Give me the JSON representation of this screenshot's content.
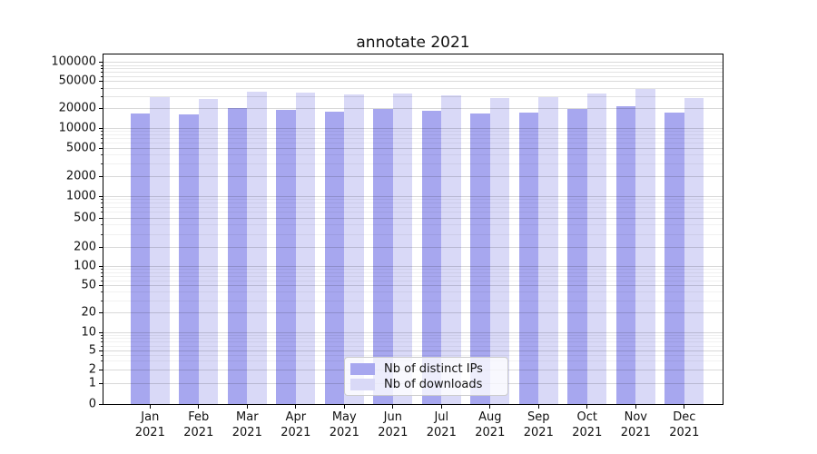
{
  "chart_data": {
    "type": "bar",
    "title": "annotate 2021",
    "categories": [
      "Jan",
      "Feb",
      "Mar",
      "Apr",
      "May",
      "Jun",
      "Jul",
      "Aug",
      "Sep",
      "Oct",
      "Nov",
      "Dec"
    ],
    "category_year": "2021",
    "series": [
      {
        "name": "Nb of distinct IPs",
        "color": "#a7a7ef",
        "values": [
          16500,
          16000,
          20000,
          19200,
          18000,
          19700,
          18200,
          16600,
          17400,
          19500,
          21300,
          17100
        ]
      },
      {
        "name": "Nb of downloads",
        "color": "#d9d9f7",
        "values": [
          28800,
          27600,
          35000,
          33600,
          32400,
          32500,
          31400,
          28000,
          29100,
          33400,
          38000,
          28200
        ]
      }
    ],
    "yscale": "symlog",
    "yticks": [
      0,
      1,
      2,
      5,
      10,
      20,
      50,
      100,
      200,
      500,
      1000,
      2000,
      5000,
      10000,
      20000,
      50000,
      100000
    ],
    "ylim": [
      0,
      140000
    ],
    "xlabel": "",
    "ylabel": "",
    "grid": true,
    "legend_position": "lower center"
  },
  "legend": {
    "items": [
      {
        "label": "Nb of distinct IPs",
        "color": "#a7a7ef"
      },
      {
        "label": "Nb of downloads",
        "color": "#d9d9f7"
      }
    ]
  }
}
